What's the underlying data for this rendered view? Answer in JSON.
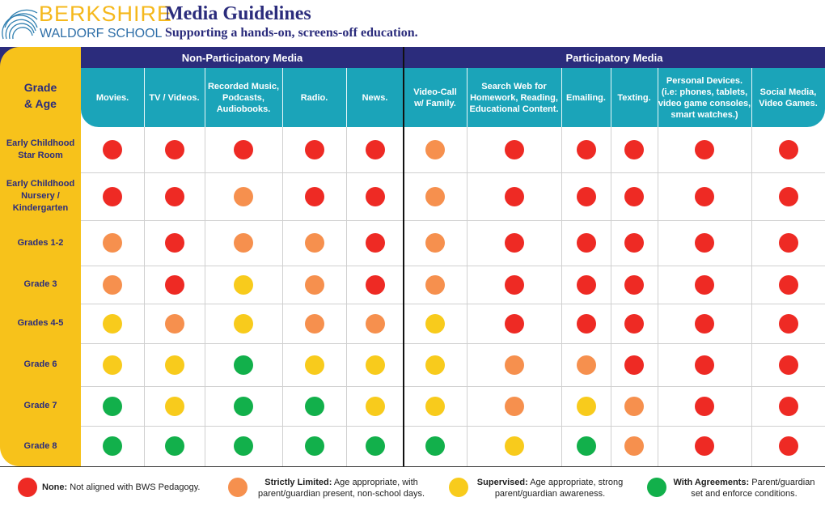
{
  "header": {
    "logo": {
      "name": "BERKSHIRE",
      "school": "WALDORF SCHOOL"
    },
    "title": "Media Guidelines",
    "subtitle": "Supporting a hands-on, screens-off education."
  },
  "table": {
    "corner": "Grade\n& Age",
    "groups": [
      {
        "label": "Non-Participatory Media",
        "columns": [
          "Movies.",
          "TV / Videos.",
          "Recorded Music,\nPodcasts,\nAudiobooks.",
          "Radio.",
          "News."
        ]
      },
      {
        "label": "Participatory Media",
        "columns": [
          "Video-Call\nw/ Family.",
          "Search Web for\nHomework, Reading,\nEducational Content.",
          "Emailing.",
          "Texting.",
          "Personal Devices.\n(i.e: phones, tablets,\nvideo game consoles,\nsmart watches.)",
          "Social Media,\nVideo Games."
        ]
      }
    ],
    "rows": [
      {
        "label": "Early Childhood\nStar Room",
        "cells": [
          "#ee2a24",
          "#ee2a24",
          "#ee2a24",
          "#ee2a24",
          "#ee2a24",
          "#f6904e",
          "#ee2a24",
          "#ee2a24",
          "#ee2a24",
          "#ee2a24",
          "#ee2a24"
        ]
      },
      {
        "label": "Early Childhood\nNursery /\nKindergarten",
        "cells": [
          "#ee2a24",
          "#ee2a24",
          "#f6904e",
          "#ee2a24",
          "#ee2a24",
          "#f6904e",
          "#ee2a24",
          "#ee2a24",
          "#ee2a24",
          "#ee2a24",
          "#ee2a24"
        ]
      },
      {
        "label": "Grades 1-2",
        "cells": [
          "#f6904e",
          "#ee2a24",
          "#f6904e",
          "#f6904e",
          "#ee2a24",
          "#f6904e",
          "#ee2a24",
          "#ee2a24",
          "#ee2a24",
          "#ee2a24",
          "#ee2a24"
        ]
      },
      {
        "label": "Grade 3",
        "cells": [
          "#f6904e",
          "#ee2a24",
          "#f8cb1c",
          "#f6904e",
          "#ee2a24",
          "#f6904e",
          "#ee2a24",
          "#ee2a24",
          "#ee2a24",
          "#ee2a24",
          "#ee2a24"
        ]
      },
      {
        "label": "Grades 4-5",
        "cells": [
          "#f8cb1c",
          "#f6904e",
          "#f8cb1c",
          "#f6904e",
          "#f6904e",
          "#f8cb1c",
          "#ee2a24",
          "#ee2a24",
          "#ee2a24",
          "#ee2a24",
          "#ee2a24"
        ]
      },
      {
        "label": "Grade 6",
        "cells": [
          "#f8cb1c",
          "#f8cb1c",
          "#12b04b",
          "#f8cb1c",
          "#f8cb1c",
          "#f8cb1c",
          "#f6904e",
          "#f6904e",
          "#ee2a24",
          "#ee2a24",
          "#ee2a24"
        ]
      },
      {
        "label": "Grade 7",
        "cells": [
          "#12b04b",
          "#f8cb1c",
          "#12b04b",
          "#12b04b",
          "#f8cb1c",
          "#f8cb1c",
          "#f6904e",
          "#f8cb1c",
          "#f6904e",
          "#ee2a24",
          "#ee2a24"
        ]
      },
      {
        "label": "Grade 8",
        "cells": [
          "#12b04b",
          "#12b04b",
          "#12b04b",
          "#12b04b",
          "#12b04b",
          "#12b04b",
          "#f8cb1c",
          "#12b04b",
          "#f6904e",
          "#ee2a24",
          "#ee2a24"
        ]
      }
    ]
  },
  "legend": [
    {
      "term": "None:",
      "text": "Not aligned with BWS Pedagogy.",
      "color": "#ee2a24"
    },
    {
      "term": "Strictly Limited:",
      "text": "Age appropriate, with\nparent/guardian present, non-school days.",
      "color": "#f6904e"
    },
    {
      "term": "Supervised:",
      "text": "Age appropriate, strong\nparent/guardian awareness.",
      "color": "#f8cb1c"
    },
    {
      "term": "With Agreements:",
      "text": "Parent/guardian\nset and enforce conditions.",
      "color": "#12b04b"
    }
  ]
}
